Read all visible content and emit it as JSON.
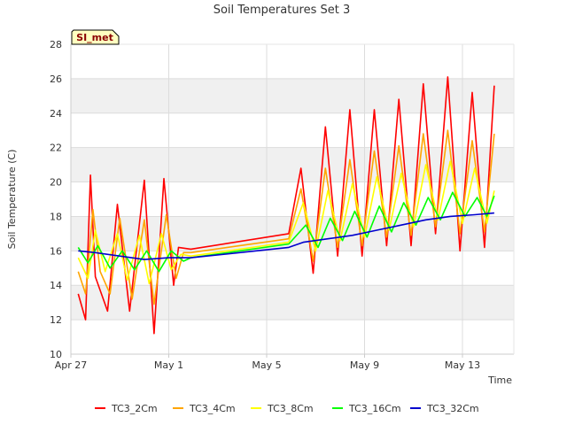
{
  "chart_data": {
    "type": "line",
    "title": "Soil Temperatures Set 3",
    "xlabel": "Time",
    "ylabel": "Soil Temperature (C)",
    "ylim": [
      10,
      28
    ],
    "xlim_days": [
      0,
      18.1
    ],
    "x_ticks": [
      {
        "label": "Apr 27",
        "day": 0
      },
      {
        "label": "May 1",
        "day": 4
      },
      {
        "label": "May 5",
        "day": 8
      },
      {
        "label": "May 9",
        "day": 12
      },
      {
        "label": "May 13",
        "day": 16
      }
    ],
    "y_ticks": [
      10,
      12,
      14,
      16,
      18,
      20,
      22,
      24,
      26,
      28
    ],
    "grid": true,
    "badge": "SI_met",
    "legend_position": "bottom",
    "gap_days": [
      4.9,
      8.9
    ],
    "series": [
      {
        "name": "TC3_2Cm",
        "color": "#ff0000",
        "x": [
          0.3,
          0.6,
          0.8,
          1.0,
          1.5,
          1.9,
          2.4,
          3.0,
          3.4,
          3.8,
          4.2,
          4.4,
          4.9,
          8.9,
          9.4,
          9.9,
          10.4,
          10.9,
          11.4,
          11.9,
          12.4,
          12.9,
          13.4,
          13.9,
          14.4,
          14.9,
          15.4,
          15.9,
          16.4,
          16.9,
          17.3
        ],
        "y": [
          13.5,
          12.0,
          20.4,
          14.5,
          12.5,
          18.7,
          12.5,
          20.1,
          11.2,
          20.2,
          14.0,
          16.2,
          16.1,
          17.0,
          20.8,
          14.7,
          23.2,
          15.7,
          24.2,
          15.7,
          24.2,
          16.3,
          24.8,
          16.3,
          25.7,
          17.0,
          26.1,
          16.0,
          25.2,
          16.2,
          25.6
        ]
      },
      {
        "name": "TC3_4Cm",
        "color": "#ffa500",
        "x": [
          0.3,
          0.6,
          0.9,
          1.2,
          1.6,
          2.0,
          2.5,
          3.0,
          3.4,
          3.9,
          4.3,
          4.6,
          4.9,
          8.9,
          9.4,
          9.9,
          10.4,
          10.9,
          11.4,
          11.9,
          12.4,
          12.9,
          13.4,
          13.9,
          14.4,
          14.9,
          15.4,
          15.9,
          16.4,
          16.9,
          17.3
        ],
        "y": [
          14.8,
          13.5,
          18.4,
          14.8,
          13.5,
          17.9,
          13.2,
          17.8,
          12.9,
          18.1,
          14.4,
          15.9,
          15.9,
          16.7,
          19.6,
          15.4,
          20.8,
          16.2,
          21.3,
          16.3,
          21.8,
          16.8,
          22.1,
          16.9,
          22.8,
          17.4,
          23.0,
          17.0,
          22.4,
          17.1,
          22.8
        ]
      },
      {
        "name": "TC3_8Cm",
        "color": "#ffff00",
        "x": [
          0.3,
          0.7,
          1.0,
          1.4,
          1.9,
          2.3,
          2.8,
          3.2,
          3.7,
          4.1,
          4.5,
          4.9,
          8.9,
          9.5,
          10.0,
          10.5,
          11.0,
          11.5,
          12.0,
          12.5,
          13.0,
          13.5,
          14.0,
          14.5,
          15.0,
          15.5,
          16.0,
          16.5,
          17.0,
          17.3
        ],
        "y": [
          15.6,
          14.4,
          17.2,
          14.8,
          17.0,
          14.3,
          16.9,
          14.1,
          17.0,
          14.9,
          15.8,
          15.7,
          16.5,
          18.8,
          16.0,
          19.5,
          16.6,
          19.9,
          16.8,
          20.3,
          17.2,
          20.5,
          17.4,
          21.0,
          17.8,
          21.2,
          17.6,
          20.8,
          17.6,
          19.5
        ]
      },
      {
        "name": "TC3_16Cm",
        "color": "#00ff00",
        "x": [
          0.3,
          0.7,
          1.1,
          1.6,
          2.1,
          2.6,
          3.1,
          3.6,
          4.1,
          4.6,
          4.9,
          8.9,
          9.6,
          10.1,
          10.6,
          11.1,
          11.6,
          12.1,
          12.6,
          13.1,
          13.6,
          14.1,
          14.6,
          15.1,
          15.6,
          16.1,
          16.6,
          17.0,
          17.3
        ],
        "y": [
          16.2,
          15.3,
          16.3,
          15.0,
          16.0,
          14.9,
          16.0,
          14.8,
          16.0,
          15.4,
          15.6,
          16.4,
          17.5,
          16.2,
          17.9,
          16.6,
          18.3,
          16.8,
          18.6,
          17.1,
          18.8,
          17.5,
          19.1,
          17.8,
          19.4,
          18.0,
          19.1,
          18.0,
          19.2
        ]
      },
      {
        "name": "TC3_32Cm",
        "color": "#0000cd",
        "x": [
          0.3,
          1.0,
          2.0,
          3.0,
          4.0,
          4.9,
          8.9,
          9.5,
          10.5,
          11.5,
          12.5,
          13.5,
          14.5,
          15.5,
          16.5,
          17.3
        ],
        "y": [
          16.0,
          15.9,
          15.7,
          15.5,
          15.6,
          15.6,
          16.2,
          16.5,
          16.7,
          16.9,
          17.2,
          17.5,
          17.8,
          18.0,
          18.1,
          18.2
        ]
      }
    ]
  }
}
